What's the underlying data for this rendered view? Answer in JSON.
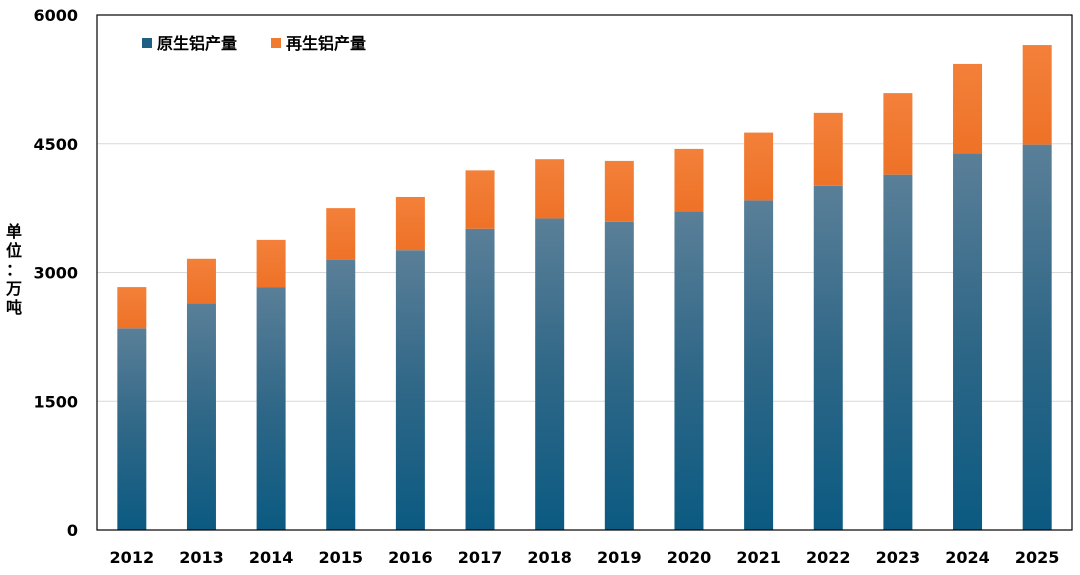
{
  "chart_data": {
    "type": "bar",
    "stacked": true,
    "categories": [
      "2012",
      "2013",
      "2014",
      "2015",
      "2016",
      "2017",
      "2018",
      "2019",
      "2020",
      "2021",
      "2022",
      "2023",
      "2024",
      "2025"
    ],
    "series": [
      {
        "name": "原生铝产量",
        "color": "#1f5f83",
        "values": [
          2350,
          2640,
          2830,
          3150,
          3260,
          3510,
          3630,
          3590,
          3710,
          3840,
          4010,
          4140,
          4390,
          4490
        ]
      },
      {
        "name": "再生铝产量",
        "color": "#f07a2e",
        "values": [
          480,
          520,
          550,
          600,
          620,
          680,
          690,
          710,
          730,
          790,
          850,
          950,
          1040,
          1160
        ]
      }
    ],
    "ylabel": "单位：万吨",
    "ylim": [
      0,
      6000
    ],
    "yticks": [
      "0",
      "1500",
      "3000",
      "4500",
      "6000"
    ],
    "grid": true,
    "legend": "top-left"
  }
}
